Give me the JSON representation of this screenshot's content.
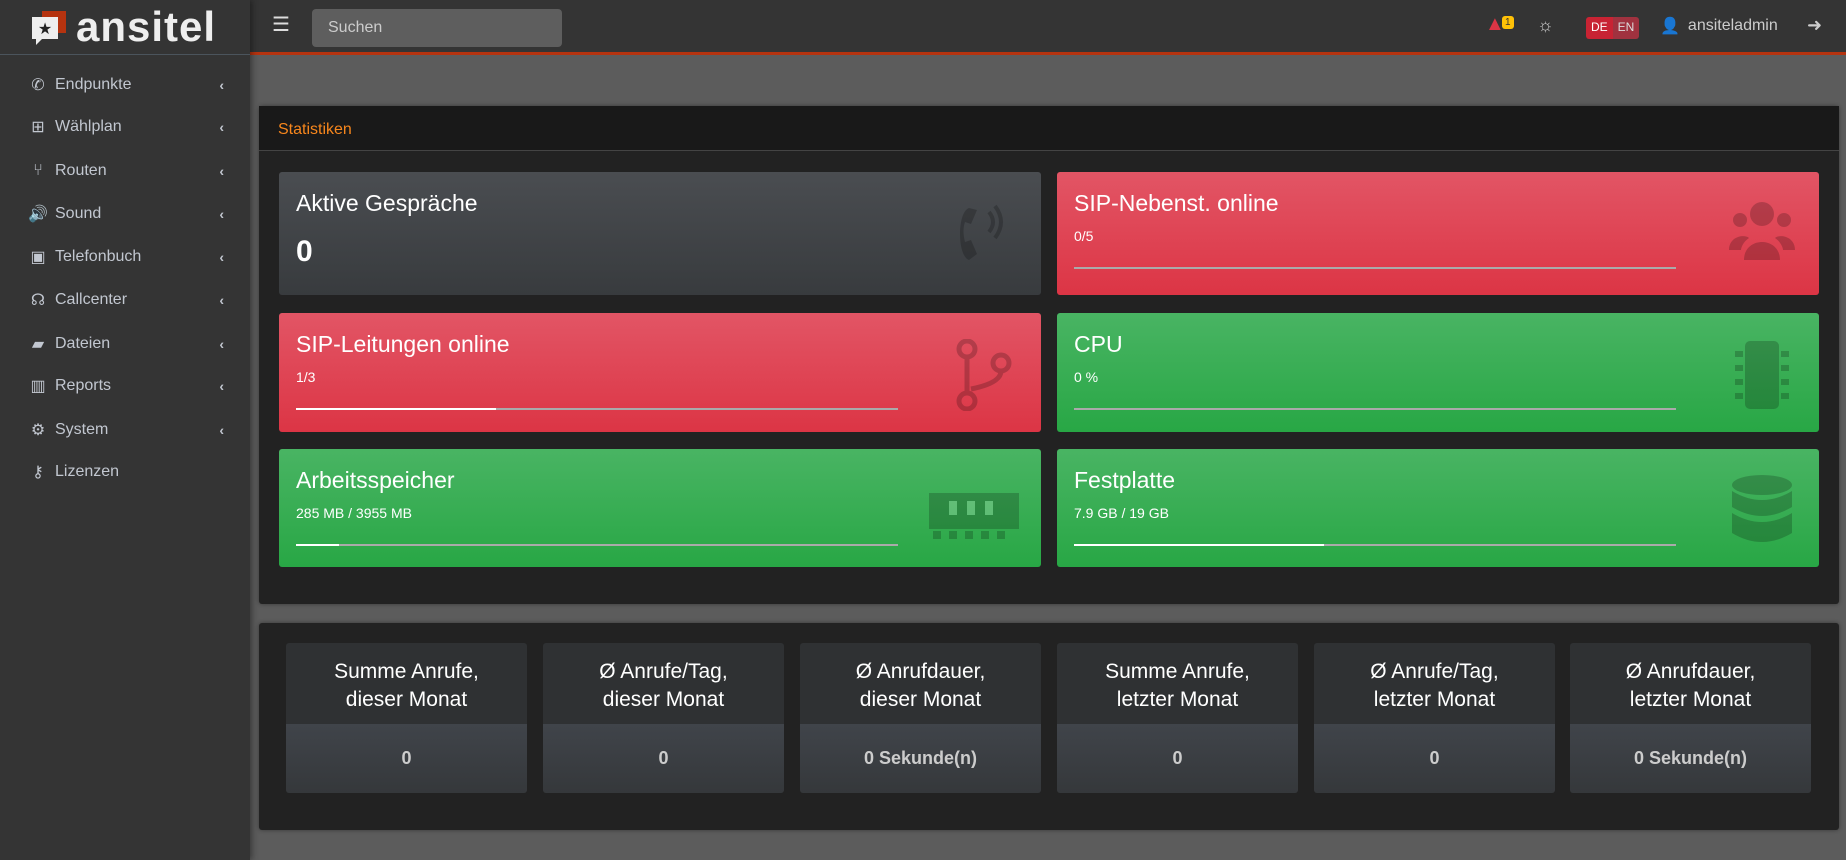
{
  "brand": "ansitel",
  "header": {
    "search_placeholder": "Suchen",
    "alerts_count": "1",
    "lang_de": "DE",
    "lang_en": "EN",
    "username": "ansiteladmin"
  },
  "sidebar": {
    "items": [
      {
        "label": "Endpunkte",
        "icon": "phone-icon"
      },
      {
        "label": "Wählplan",
        "icon": "sitemap-icon"
      },
      {
        "label": "Routen",
        "icon": "code-branch-icon"
      },
      {
        "label": "Sound",
        "icon": "volume-icon"
      },
      {
        "label": "Telefonbuch",
        "icon": "address-book-icon"
      },
      {
        "label": "Callcenter",
        "icon": "headset-icon"
      },
      {
        "label": "Dateien",
        "icon": "folder-open-icon"
      },
      {
        "label": "Reports",
        "icon": "chart-bar-icon"
      },
      {
        "label": "System",
        "icon": "cogs-icon"
      },
      {
        "label": "Lizenzen",
        "icon": "key-icon"
      }
    ]
  },
  "stats": {
    "title": "Statistiken",
    "active_calls": {
      "title": "Aktive Gespräche",
      "value": "0"
    },
    "sip_ext": {
      "title": "SIP-Nebenst. online",
      "value": "0/5",
      "progress": 0
    },
    "sip_trunks": {
      "title": "SIP-Leitungen online",
      "value": "1/3",
      "progress": 33.3
    },
    "cpu": {
      "title": "CPU",
      "value": "0 %",
      "progress": 0
    },
    "ram": {
      "title": "Arbeitsspeicher",
      "value": "285 MB / 3955 MB",
      "progress": 7.2
    },
    "disk": {
      "title": "Festplatte",
      "value": "7.9 GB / 19 GB",
      "progress": 41.6
    }
  },
  "colors": {
    "red": "#dc3545",
    "green": "#28a745",
    "accent": "#f7861c",
    "header_line": "#b5330f"
  },
  "calls": [
    {
      "l1": "Summe Anrufe,",
      "l2": "dieser Monat",
      "value": "0"
    },
    {
      "l1": "Ø Anrufe/Tag,",
      "l2": "dieser Monat",
      "value": "0"
    },
    {
      "l1": "Ø Anrufdauer,",
      "l2": "dieser Monat",
      "value": "0 Sekunde(n)"
    },
    {
      "l1": "Summe Anrufe,",
      "l2": "letzter Monat",
      "value": "0"
    },
    {
      "l1": "Ø Anrufe/Tag,",
      "l2": "letzter Monat",
      "value": "0"
    },
    {
      "l1": "Ø Anrufdauer,",
      "l2": "letzter Monat",
      "value": "0 Sekunde(n)"
    }
  ]
}
